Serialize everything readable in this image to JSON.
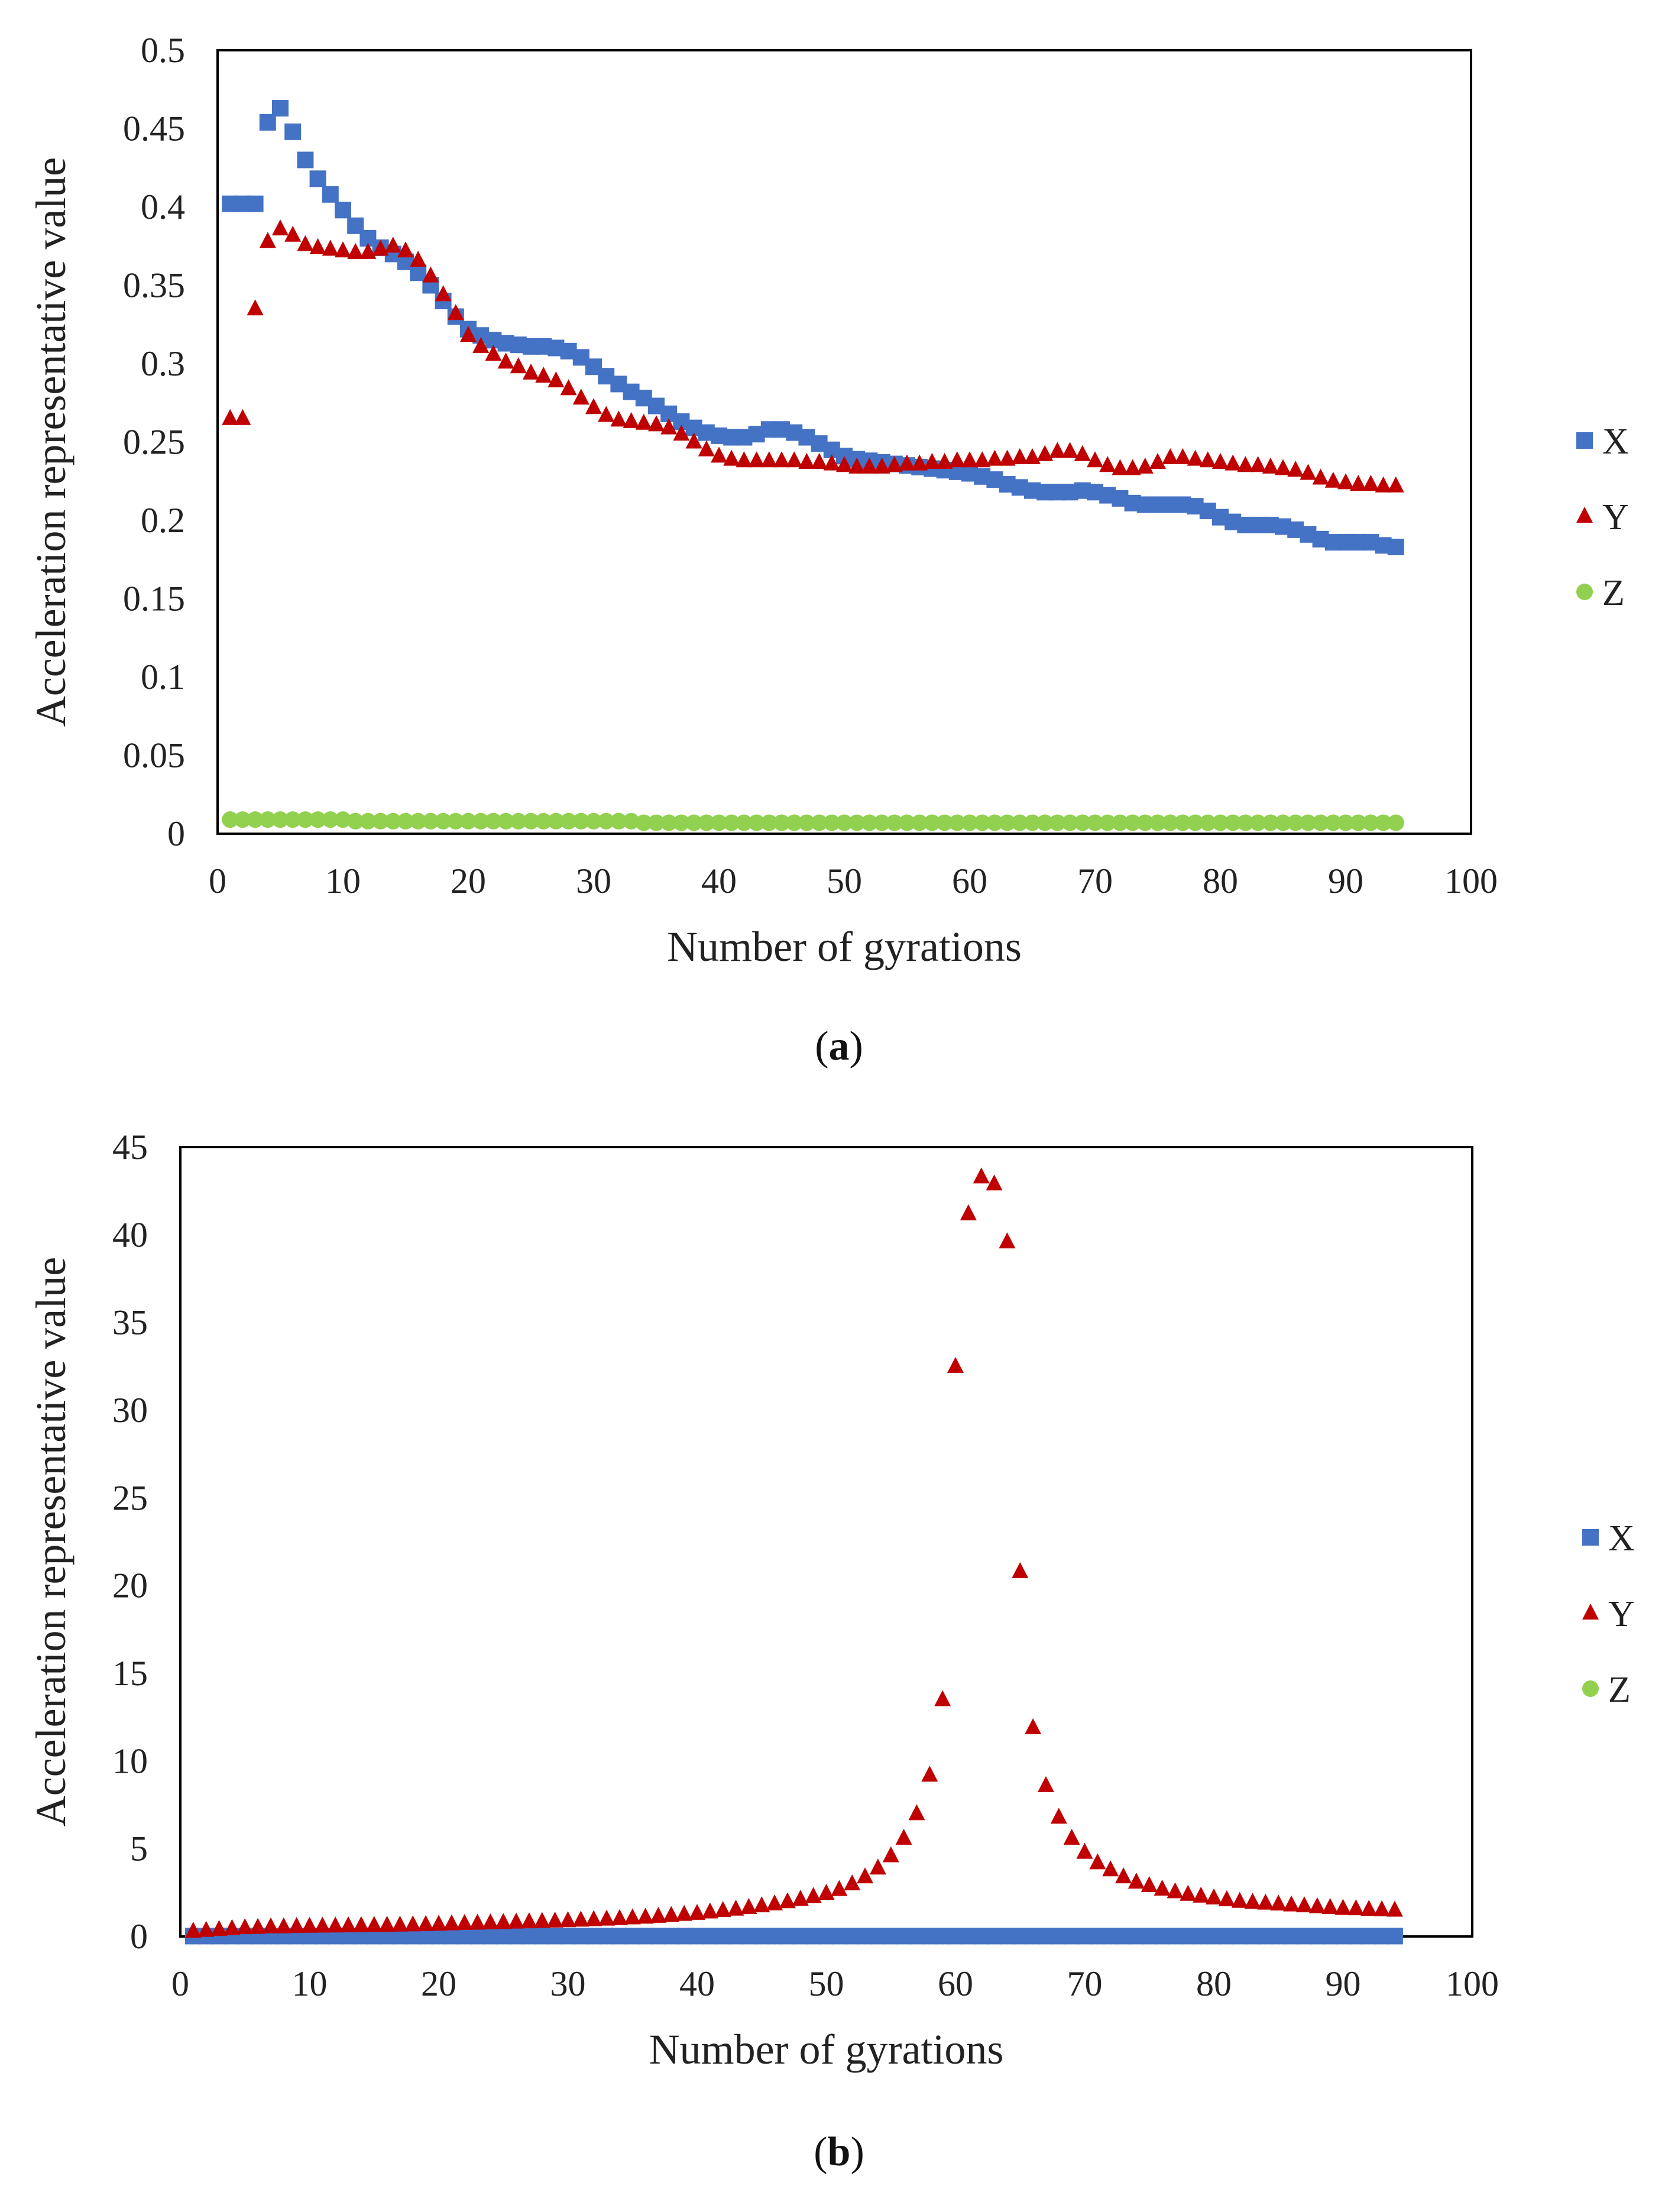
{
  "colors": {
    "X": "#4472C4",
    "Y": "#C00000",
    "Z": "#92D050"
  },
  "chart_data": [
    {
      "type": "scatter",
      "panel": "a",
      "caption": "a",
      "xlabel": "Number of gyrations",
      "ylabel": "Acceleration representative value",
      "xlim": [
        0,
        100
      ],
      "ylim": [
        0,
        0.5
      ],
      "xticks": [
        "0",
        "10",
        "20",
        "30",
        "40",
        "50",
        "60",
        "70",
        "80",
        "90",
        "100"
      ],
      "yticks": [
        "0",
        "0.05",
        "0.1",
        "0.15",
        "0.2",
        "0.25",
        "0.3",
        "0.35",
        "0.4",
        "0.45",
        "0.5"
      ],
      "legend": [
        "X",
        "Y",
        "Z"
      ],
      "x": [
        1,
        2,
        3,
        4,
        5,
        6,
        7,
        8,
        9,
        10,
        11,
        12,
        13,
        14,
        15,
        16,
        17,
        18,
        19,
        20,
        21,
        22,
        23,
        24,
        25,
        26,
        27,
        28,
        29,
        30,
        31,
        32,
        33,
        34,
        35,
        36,
        37,
        38,
        39,
        40,
        41,
        42,
        43,
        44,
        45,
        46,
        47,
        48,
        49,
        50,
        51,
        52,
        53,
        54,
        55,
        56,
        57,
        58,
        59,
        60,
        61,
        62,
        63,
        64,
        65,
        66,
        67,
        68,
        69,
        70,
        71,
        72,
        73,
        74,
        75,
        76,
        77,
        78,
        79,
        80,
        81,
        82,
        83,
        84,
        85,
        86,
        87,
        88,
        89,
        90,
        91,
        92,
        93,
        94
      ],
      "series": [
        {
          "name": "X",
          "marker": "square",
          "values": [
            0.402,
            0.402,
            0.402,
            0.454,
            0.463,
            0.448,
            0.43,
            0.418,
            0.408,
            0.398,
            0.388,
            0.38,
            0.374,
            0.37,
            0.365,
            0.358,
            0.35,
            0.34,
            0.33,
            0.322,
            0.318,
            0.315,
            0.313,
            0.312,
            0.311,
            0.311,
            0.31,
            0.308,
            0.304,
            0.298,
            0.292,
            0.287,
            0.282,
            0.278,
            0.273,
            0.268,
            0.263,
            0.259,
            0.256,
            0.254,
            0.253,
            0.253,
            0.255,
            0.258,
            0.258,
            0.256,
            0.253,
            0.249,
            0.245,
            0.241,
            0.239,
            0.238,
            0.237,
            0.236,
            0.235,
            0.234,
            0.233,
            0.232,
            0.231,
            0.23,
            0.228,
            0.226,
            0.223,
            0.221,
            0.219,
            0.218,
            0.218,
            0.218,
            0.219,
            0.218,
            0.216,
            0.214,
            0.211,
            0.21,
            0.21,
            0.21,
            0.21,
            0.209,
            0.206,
            0.202,
            0.199,
            0.197,
            0.197,
            0.197,
            0.196,
            0.194,
            0.191,
            0.188,
            0.186,
            0.186,
            0.186,
            0.186,
            0.184,
            0.183
          ]
        },
        {
          "name": "Y",
          "marker": "triangle",
          "values": [
            0.265,
            0.265,
            0.335,
            0.378,
            0.386,
            0.382,
            0.376,
            0.374,
            0.373,
            0.372,
            0.371,
            0.371,
            0.373,
            0.375,
            0.372,
            0.366,
            0.356,
            0.344,
            0.332,
            0.318,
            0.311,
            0.306,
            0.301,
            0.298,
            0.294,
            0.292,
            0.289,
            0.284,
            0.278,
            0.272,
            0.267,
            0.264,
            0.263,
            0.262,
            0.261,
            0.259,
            0.255,
            0.25,
            0.245,
            0.241,
            0.239,
            0.238,
            0.238,
            0.238,
            0.238,
            0.238,
            0.237,
            0.237,
            0.236,
            0.235,
            0.234,
            0.234,
            0.234,
            0.235,
            0.236,
            0.236,
            0.237,
            0.237,
            0.238,
            0.238,
            0.238,
            0.239,
            0.239,
            0.24,
            0.24,
            0.242,
            0.244,
            0.244,
            0.242,
            0.238,
            0.235,
            0.233,
            0.233,
            0.234,
            0.237,
            0.24,
            0.24,
            0.239,
            0.238,
            0.237,
            0.236,
            0.235,
            0.235,
            0.234,
            0.233,
            0.232,
            0.23,
            0.227,
            0.225,
            0.224,
            0.223,
            0.223,
            0.222,
            0.222
          ]
        },
        {
          "name": "Z",
          "marker": "circle",
          "values": [
            0.009,
            0.009,
            0.009,
            0.009,
            0.009,
            0.009,
            0.009,
            0.009,
            0.009,
            0.009,
            0.008,
            0.008,
            0.008,
            0.008,
            0.008,
            0.008,
            0.008,
            0.008,
            0.008,
            0.008,
            0.008,
            0.008,
            0.008,
            0.008,
            0.008,
            0.008,
            0.008,
            0.008,
            0.008,
            0.008,
            0.008,
            0.008,
            0.008,
            0.007,
            0.007,
            0.007,
            0.007,
            0.007,
            0.007,
            0.007,
            0.007,
            0.007,
            0.007,
            0.007,
            0.007,
            0.007,
            0.007,
            0.007,
            0.007,
            0.007,
            0.007,
            0.007,
            0.007,
            0.007,
            0.007,
            0.007,
            0.007,
            0.007,
            0.007,
            0.007,
            0.007,
            0.007,
            0.007,
            0.007,
            0.007,
            0.007,
            0.007,
            0.007,
            0.007,
            0.007,
            0.007,
            0.007,
            0.007,
            0.007,
            0.007,
            0.007,
            0.007,
            0.007,
            0.007,
            0.007,
            0.007,
            0.007,
            0.007,
            0.007,
            0.007,
            0.007,
            0.007,
            0.007,
            0.007,
            0.007,
            0.007,
            0.007,
            0.007,
            0.007
          ]
        }
      ]
    },
    {
      "type": "scatter",
      "panel": "b",
      "caption": "b",
      "xlabel": "Number of gyrations",
      "ylabel": "Acceleration representative value",
      "xlim": [
        0,
        100
      ],
      "ylim": [
        0,
        45
      ],
      "xticks": [
        "0",
        "10",
        "20",
        "30",
        "40",
        "50",
        "60",
        "70",
        "80",
        "90",
        "100"
      ],
      "yticks": [
        "0",
        "5",
        "10",
        "15",
        "20",
        "25",
        "30",
        "35",
        "40",
        "45"
      ],
      "legend": [
        "X",
        "Y",
        "Z"
      ],
      "x": [
        1,
        2,
        3,
        4,
        5,
        6,
        7,
        8,
        9,
        10,
        11,
        12,
        13,
        14,
        15,
        16,
        17,
        18,
        19,
        20,
        21,
        22,
        23,
        24,
        25,
        26,
        27,
        28,
        29,
        30,
        31,
        32,
        33,
        34,
        35,
        36,
        37,
        38,
        39,
        40,
        41,
        42,
        43,
        44,
        45,
        46,
        47,
        48,
        49,
        50,
        51,
        52,
        53,
        54,
        55,
        56,
        57,
        58,
        59,
        60,
        61,
        62,
        63,
        64,
        65,
        66,
        67,
        68,
        69,
        70,
        71,
        72,
        73,
        74,
        75,
        76,
        77,
        78,
        79,
        80,
        81,
        82,
        83,
        84,
        85,
        86,
        87,
        88,
        89,
        90,
        91,
        92,
        93,
        94
      ],
      "series": [
        {
          "name": "X",
          "marker": "square",
          "values": [
            0.02,
            0.02,
            0.02,
            0.02,
            0.02,
            0.02,
            0.02,
            0.02,
            0.02,
            0.02,
            0.02,
            0.02,
            0.02,
            0.02,
            0.02,
            0.02,
            0.02,
            0.02,
            0.02,
            0.02,
            0.02,
            0.02,
            0.02,
            0.02,
            0.02,
            0.02,
            0.02,
            0.02,
            0.02,
            0.02,
            0.02,
            0.02,
            0.02,
            0.02,
            0.02,
            0.02,
            0.02,
            0.02,
            0.02,
            0.02,
            0.02,
            0.02,
            0.02,
            0.02,
            0.02,
            0.02,
            0.02,
            0.02,
            0.02,
            0.02,
            0.02,
            0.02,
            0.02,
            0.02,
            0.02,
            0.02,
            0.02,
            0.02,
            0.02,
            0.02,
            0.02,
            0.02,
            0.02,
            0.02,
            0.02,
            0.02,
            0.02,
            0.02,
            0.02,
            0.02,
            0.02,
            0.02,
            0.02,
            0.02,
            0.02,
            0.02,
            0.02,
            0.02,
            0.02,
            0.02,
            0.02,
            0.02,
            0.02,
            0.02,
            0.02,
            0.02,
            0.02,
            0.02,
            0.02,
            0.02,
            0.02,
            0.02,
            0.02,
            0.02
          ]
        },
        {
          "name": "Y",
          "marker": "triangle",
          "values": [
            0.3,
            0.35,
            0.4,
            0.45,
            0.5,
            0.52,
            0.55,
            0.55,
            0.57,
            0.58,
            0.59,
            0.6,
            0.61,
            0.62,
            0.63,
            0.64,
            0.65,
            0.66,
            0.68,
            0.7,
            0.72,
            0.74,
            0.76,
            0.78,
            0.8,
            0.82,
            0.84,
            0.86,
            0.88,
            0.9,
            0.93,
            0.96,
            0.99,
            1.02,
            1.06,
            1.1,
            1.15,
            1.2,
            1.26,
            1.32,
            1.4,
            1.48,
            1.56,
            1.65,
            1.75,
            1.86,
            1.98,
            2.12,
            2.28,
            2.46,
            2.68,
            3.0,
            3.4,
            3.9,
            4.6,
            5.6,
            7.0,
            9.2,
            13.5,
            32.5,
            41.2,
            43.3,
            42.9,
            39.6,
            20.8,
            11.9,
            8.6,
            6.8,
            5.6,
            4.8,
            4.2,
            3.8,
            3.4,
            3.1,
            2.9,
            2.7,
            2.55,
            2.4,
            2.3,
            2.2,
            2.1,
            2.0,
            1.95,
            1.9,
            1.85,
            1.8,
            1.75,
            1.7,
            1.65,
            1.6,
            1.58,
            1.55,
            1.52,
            1.5
          ]
        },
        {
          "name": "Z",
          "marker": "circle",
          "values": [
            0.02,
            0.02,
            0.02,
            0.02,
            0.02,
            0.02,
            0.02,
            0.02,
            0.02,
            0.02,
            0.02,
            0.02,
            0.02,
            0.02,
            0.02,
            0.02,
            0.02,
            0.02,
            0.02,
            0.02,
            0.02,
            0.02,
            0.02,
            0.02,
            0.02,
            0.02,
            0.02,
            0.02,
            0.02,
            0.02,
            0.02,
            0.02,
            0.02,
            0.02,
            0.02,
            0.02,
            0.02,
            0.02,
            0.02,
            0.02,
            0.02,
            0.02,
            0.02,
            0.02,
            0.02,
            0.02,
            0.02,
            0.02,
            0.02,
            0.02,
            0.02,
            0.02,
            0.02,
            0.02,
            0.02,
            0.02,
            0.02,
            0.02,
            0.02,
            0.02,
            0.02,
            0.02,
            0.02,
            0.02,
            0.02,
            0.02,
            0.02,
            0.02,
            0.02,
            0.02,
            0.02,
            0.02,
            0.02,
            0.02,
            0.02,
            0.02,
            0.02,
            0.02,
            0.02,
            0.02,
            0.02,
            0.02,
            0.02,
            0.02,
            0.02,
            0.02,
            0.02,
            0.02,
            0.02,
            0.02,
            0.02,
            0.02,
            0.02,
            0.02
          ]
        }
      ]
    }
  ]
}
